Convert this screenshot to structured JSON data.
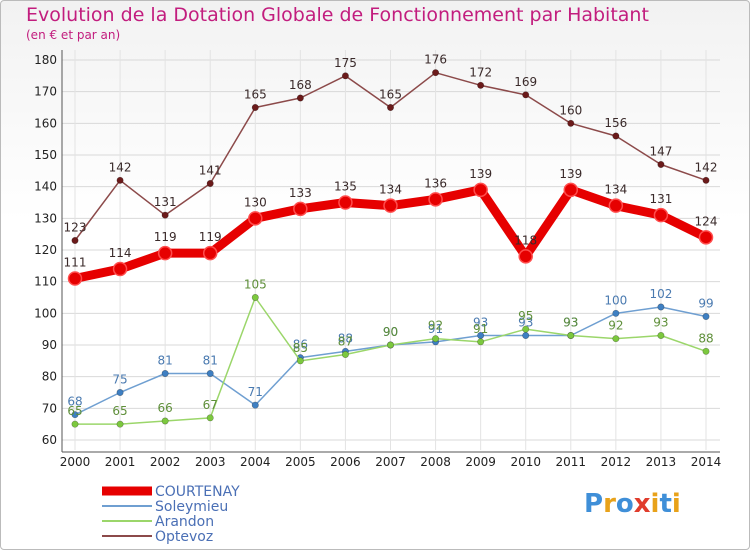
{
  "title": "Evolution de la Dotation Globale de Fonctionnement par Habitant",
  "subtitle": "(en € et par an)",
  "logo": {
    "letters": [
      "P",
      "r",
      "o",
      "x",
      "i",
      "t",
      "i"
    ],
    "colors": [
      "#3f8fd8",
      "#e8a21a",
      "#3f8fd8",
      "#e03c2c",
      "#e8a21a",
      "#3f8fd8",
      "#e8a21a"
    ]
  },
  "chart_data": {
    "type": "line",
    "title": "Evolution de la Dotation Globale de Fonctionnement par Habitant",
    "subtitle": "(en € et par an)",
    "xlabel": "",
    "ylabel": "",
    "x": [
      2000,
      2001,
      2002,
      2003,
      2004,
      2005,
      2006,
      2007,
      2008,
      2009,
      2010,
      2011,
      2012,
      2013,
      2014
    ],
    "x_labels": [
      "2000",
      "2001",
      "2002",
      "2003",
      "2004",
      "2005",
      "2006",
      "2007",
      "2008",
      "2009",
      "2010",
      "2011",
      "2012",
      "2013",
      "2014"
    ],
    "ylim": [
      60,
      180
    ],
    "yticks": [
      60,
      70,
      80,
      90,
      100,
      110,
      120,
      130,
      140,
      150,
      160,
      170,
      180
    ],
    "grid": true,
    "legend_position": "bottom-left",
    "series": [
      {
        "name": "COURTENAY",
        "color": "#e60000",
        "emphasis": true,
        "values": [
          111,
          114,
          119,
          119,
          130,
          133,
          135,
          134,
          136,
          139,
          118,
          139,
          134,
          131,
          124
        ]
      },
      {
        "name": "Soleymieu",
        "color": "#6f9fd1",
        "point_color": "#3e7fc2",
        "label_color": "#4a7ab0",
        "emphasis": false,
        "values": [
          68,
          75,
          81,
          81,
          71,
          86,
          88,
          90,
          91,
          93,
          93,
          93,
          100,
          102,
          99
        ]
      },
      {
        "name": "Arandon",
        "color": "#9bd66a",
        "point_color": "#7cc83e",
        "label_color": "#5f8f3a",
        "emphasis": false,
        "values": [
          65,
          65,
          66,
          67,
          105,
          85,
          87,
          90,
          92,
          91,
          95,
          93,
          92,
          93,
          88
        ]
      },
      {
        "name": "Optevoz",
        "color": "#8c4a4a",
        "point_color": "#6b1a1a",
        "label_color": "#3a2a2a",
        "emphasis": false,
        "values": [
          123,
          142,
          131,
          141,
          165,
          168,
          175,
          165,
          176,
          172,
          169,
          160,
          156,
          147,
          142
        ]
      }
    ]
  }
}
